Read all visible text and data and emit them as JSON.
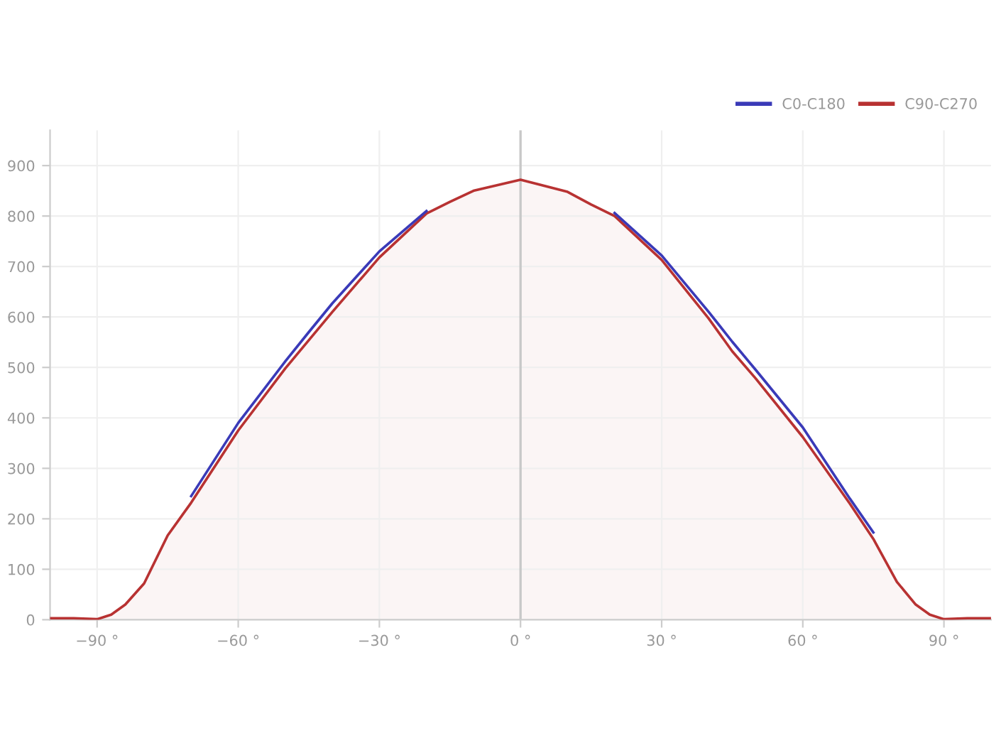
{
  "chart_data": {
    "type": "line",
    "x": [
      -100,
      -95,
      -90,
      -87,
      -84,
      -80,
      -75,
      -70,
      -60,
      -50,
      -45,
      -40,
      -30,
      -20,
      -15,
      -10,
      0,
      10,
      15,
      20,
      30,
      40,
      45,
      50,
      60,
      70,
      75,
      80,
      84,
      87,
      90,
      95,
      100
    ],
    "series": [
      {
        "name": "C0-C180",
        "color": "#3a3ab8",
        "values": [
          null,
          null,
          null,
          null,
          null,
          null,
          null,
          245,
          390,
          512,
          570,
          627,
          730,
          810,
          null,
          null,
          null,
          null,
          null,
          806,
          722,
          610,
          551,
          495,
          381,
          240,
          173,
          null,
          null,
          null,
          null,
          null,
          null
        ]
      },
      {
        "name": "C90-C270",
        "color": "#b83232",
        "type": "area",
        "values": [
          3,
          3,
          1,
          10,
          30,
          72,
          167,
          232,
          375,
          498,
          554,
          610,
          718,
          805,
          828,
          850,
          872,
          848,
          823,
          800,
          713,
          597,
          532,
          478,
          362,
          230,
          160,
          75,
          30,
          10,
          1,
          3,
          3
        ]
      }
    ],
    "xlim": [
      -100,
      100
    ],
    "ylim": [
      0,
      970
    ],
    "xticks": [
      {
        "value": -90,
        "label": "−90 °"
      },
      {
        "value": -60,
        "label": "−60 °"
      },
      {
        "value": -30,
        "label": "−30 °"
      },
      {
        "value": 0,
        "label": "0 °"
      },
      {
        "value": 30,
        "label": "30 °"
      },
      {
        "value": 60,
        "label": "60 °"
      },
      {
        "value": 90,
        "label": "90 °"
      }
    ],
    "yticks": [
      0,
      100,
      200,
      300,
      400,
      500,
      600,
      700,
      800,
      900
    ],
    "ref_lines": [
      {
        "axis": "x",
        "value": 0,
        "color": "#c8c8c8"
      }
    ],
    "grid": true,
    "legend": "top right"
  }
}
